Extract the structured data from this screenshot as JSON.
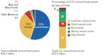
{
  "chart_data": [
    {
      "type": "pie",
      "subtitle": "Total worldwide mutual fund assets:\n$36.9 trillion",
      "categories": [
        "United States",
        "Europe",
        "Asia and\nAsia-Pacific",
        "Other Americas",
        null
      ],
      "values": [
        55,
        33,
        7,
        2,
        3
      ],
      "value_labels": [
        "55%",
        "33%",
        "7%",
        "2%",
        "3%"
      ],
      "colors": [
        "#1f5fa6",
        "#e8b84b",
        "#c0392b",
        "#27ae60",
        "#2c3e50"
      ],
      "data_labels": true
    },
    {
      "type": "bar",
      "title": "Percentage of U.S. mutual fund assets\nby type of fund",
      "subtitle": "Total U.S. mutual fund assets:\n$23.9 trillion",
      "categories": [
        null
      ],
      "series": [
        {
          "name": "Domestic equity funds",
          "color": "#e8b84b",
          "values": [
            53
          ]
        },
        {
          "name": "World equity funds",
          "color": "#c0392b",
          "values": [
            14
          ]
        },
        {
          "name": "Bond funds",
          "color": "#27ae60",
          "values": [
            23
          ]
        },
        {
          "name": "Money market funds",
          "color": "#2c6fa6",
          "values": [
            5
          ]
        },
        {
          "name": "Hybrid funds",
          "color": "#8b4513",
          "values": [
            5
          ]
        }
      ],
      "stacked": true,
      "ylim": [
        0,
        100
      ],
      "grid": false,
      "tick_labels": false,
      "legend": "right",
      "data_labels": true
    }
  ]
}
